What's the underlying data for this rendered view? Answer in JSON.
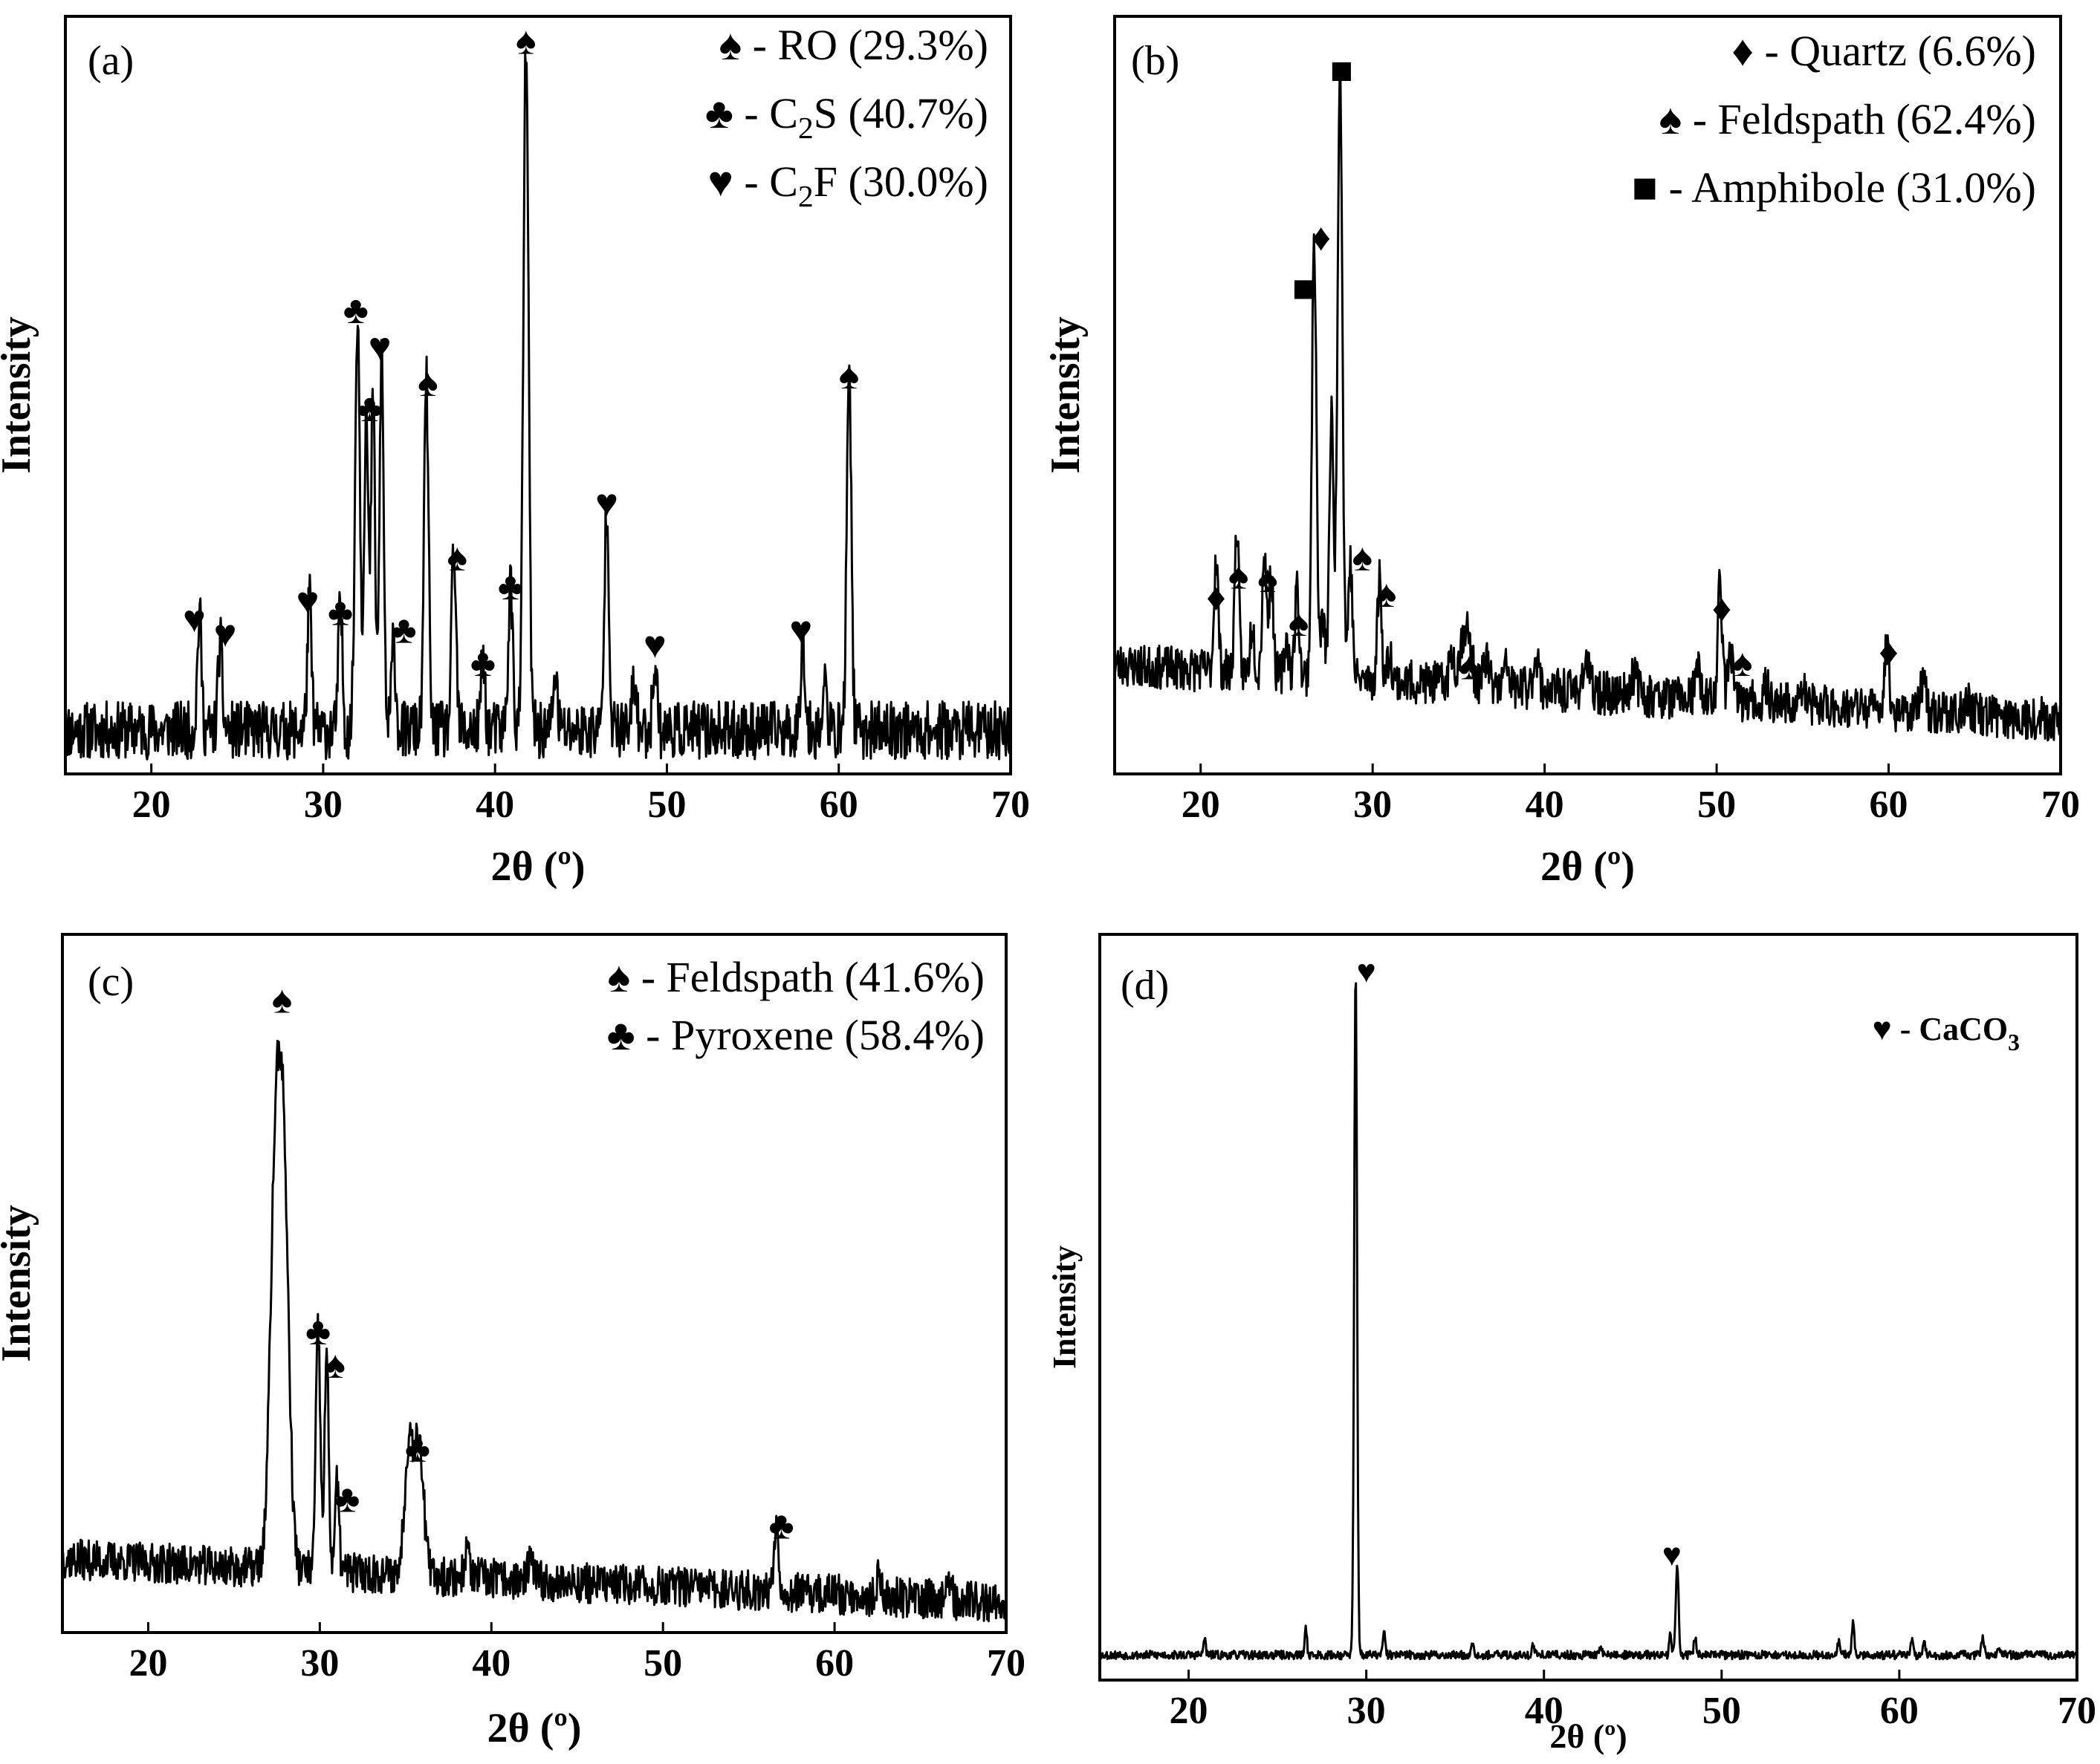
{
  "x_axis_label": "2θ (º)",
  "y_axis_label": "Intensity",
  "symbols": {
    "spade": "♠",
    "club": "♣",
    "heart": "♥",
    "diamond": "♦",
    "square": "■"
  },
  "chart_data": [
    {
      "panel": "(a)",
      "type": "line",
      "xlabel": "2θ (º)",
      "ylabel": "Intensity",
      "xlim": [
        15,
        70
      ],
      "ylim": [
        0,
        100
      ],
      "xticks": [
        20,
        30,
        40,
        50,
        60,
        70
      ],
      "baseline": 6,
      "seed": 11,
      "noise": 4,
      "peaks": [
        {
          "x": 22.8,
          "h": 16,
          "w": 0.12
        },
        {
          "x": 24.0,
          "h": 12,
          "w": 0.12
        },
        {
          "x": 29.2,
          "h": 18,
          "w": 0.12
        },
        {
          "x": 31.0,
          "h": 17,
          "w": 0.12
        },
        {
          "x": 32.0,
          "h": 58,
          "w": 0.14
        },
        {
          "x": 32.5,
          "h": 44,
          "w": 0.12
        },
        {
          "x": 32.9,
          "h": 46,
          "w": 0.12
        },
        {
          "x": 33.4,
          "h": 52,
          "w": 0.12
        },
        {
          "x": 34.1,
          "h": 12,
          "w": 0.12
        },
        {
          "x": 36.0,
          "h": 48,
          "w": 0.13
        },
        {
          "x": 37.6,
          "h": 24,
          "w": 0.13
        },
        {
          "x": 39.3,
          "h": 10,
          "w": 0.12
        },
        {
          "x": 40.9,
          "h": 20,
          "w": 0.13
        },
        {
          "x": 41.8,
          "h": 94,
          "w": 0.15
        },
        {
          "x": 43.5,
          "h": 8,
          "w": 0.12
        },
        {
          "x": 46.5,
          "h": 31,
          "w": 0.13
        },
        {
          "x": 48.1,
          "h": 7,
          "w": 0.12
        },
        {
          "x": 49.3,
          "h": 10,
          "w": 0.12
        },
        {
          "x": 57.9,
          "h": 13,
          "w": 0.12
        },
        {
          "x": 59.2,
          "h": 6,
          "w": 0.12
        },
        {
          "x": 60.6,
          "h": 51,
          "w": 0.13
        }
      ],
      "legend": [
        {
          "symbol": "♠",
          "text": "- RO (29.3%)"
        },
        {
          "symbol": "♣",
          "text": "- C",
          "sub": "2",
          "tail": "S (40.7%)"
        },
        {
          "symbol": "♥",
          "text": "- C",
          "sub": "2",
          "tail": "F (30.0%)"
        }
      ],
      "markers": [
        {
          "x": 22.5,
          "y": 19.5,
          "symbol": "♥"
        },
        {
          "x": 24.3,
          "y": 17.5,
          "symbol": "♥"
        },
        {
          "x": 29.1,
          "y": 22,
          "symbol": "♥"
        },
        {
          "x": 31.0,
          "y": 20.5,
          "symbol": "♣"
        },
        {
          "x": 31.9,
          "y": 62,
          "symbol": "♣"
        },
        {
          "x": 32.7,
          "y": 48.5,
          "symbol": "♣"
        },
        {
          "x": 33.3,
          "y": 57,
          "symbol": "♥"
        },
        {
          "x": 34.7,
          "y": 18,
          "symbol": "♣"
        },
        {
          "x": 36.1,
          "y": 52,
          "symbol": "♠"
        },
        {
          "x": 37.8,
          "y": 28,
          "symbol": "♠"
        },
        {
          "x": 39.3,
          "y": 13.5,
          "symbol": "♣"
        },
        {
          "x": 40.9,
          "y": 24,
          "symbol": "♣"
        },
        {
          "x": 41.8,
          "y": 99,
          "symbol": "♠"
        },
        {
          "x": 46.5,
          "y": 35.5,
          "symbol": "♥"
        },
        {
          "x": 49.3,
          "y": 16,
          "symbol": "♥"
        },
        {
          "x": 57.8,
          "y": 18,
          "symbol": "♥"
        },
        {
          "x": 60.6,
          "y": 53,
          "symbol": "♠"
        }
      ]
    },
    {
      "panel": "(b)",
      "type": "line",
      "xlabel": "2θ (º)",
      "ylabel": "Intensity",
      "xlim": [
        15,
        70
      ],
      "ylim": [
        0,
        100
      ],
      "xticks": [
        20,
        30,
        40,
        50,
        60,
        70
      ],
      "baseline": 6,
      "seed": 23,
      "noise": 3,
      "hump": {
        "start": 9,
        "end": 1.5
      },
      "peaks": [
        {
          "x": 20.9,
          "h": 16,
          "w": 0.12
        },
        {
          "x": 22.1,
          "h": 20,
          "w": 0.12
        },
        {
          "x": 23.0,
          "h": 7,
          "w": 0.12
        },
        {
          "x": 23.7,
          "h": 17,
          "w": 0.12
        },
        {
          "x": 24.1,
          "h": 14,
          "w": 0.12
        },
        {
          "x": 25.0,
          "h": 5,
          "w": 0.12
        },
        {
          "x": 25.6,
          "h": 12,
          "w": 0.12
        },
        {
          "x": 26.6,
          "h": 60,
          "w": 0.13
        },
        {
          "x": 27.1,
          "h": 8,
          "w": 0.12
        },
        {
          "x": 27.6,
          "h": 36,
          "w": 0.12
        },
        {
          "x": 28.1,
          "h": 85,
          "w": 0.14
        },
        {
          "x": 28.7,
          "h": 16,
          "w": 0.12
        },
        {
          "x": 30.4,
          "h": 14,
          "w": 0.12
        },
        {
          "x": 31.0,
          "h": 4,
          "w": 0.12
        },
        {
          "x": 34.6,
          "h": 4,
          "w": 0.15
        },
        {
          "x": 35.4,
          "h": 8,
          "w": 0.3
        },
        {
          "x": 36.6,
          "h": 4,
          "w": 0.15
        },
        {
          "x": 37.8,
          "h": 3,
          "w": 0.15
        },
        {
          "x": 39.5,
          "h": 5,
          "w": 0.15
        },
        {
          "x": 42.4,
          "h": 4,
          "w": 0.2
        },
        {
          "x": 45.2,
          "h": 3,
          "w": 0.2
        },
        {
          "x": 48.9,
          "h": 4,
          "w": 0.15
        },
        {
          "x": 50.2,
          "h": 16,
          "w": 0.13
        },
        {
          "x": 50.8,
          "h": 8,
          "w": 0.12
        },
        {
          "x": 52.9,
          "h": 2,
          "w": 0.15
        },
        {
          "x": 55.0,
          "h": 2,
          "w": 0.15
        },
        {
          "x": 59.9,
          "h": 9,
          "w": 0.13
        },
        {
          "x": 62.0,
          "h": 4,
          "w": 0.15
        },
        {
          "x": 64.6,
          "h": 2,
          "w": 0.15
        }
      ],
      "legend": [
        {
          "symbol": "♦",
          "text": "- Quartz (6.6%)"
        },
        {
          "symbol": "♠",
          "text": "- Feldspath (62.4%)"
        },
        {
          "symbol": "■",
          "text": "- Amphibole (31.0%)"
        }
      ],
      "markers": [
        {
          "x": 20.9,
          "y": 22.5,
          "symbol": "♦"
        },
        {
          "x": 22.2,
          "y": 25.5,
          "symbol": "♠"
        },
        {
          "x": 23.9,
          "y": 25,
          "symbol": "♠"
        },
        {
          "x": 25.7,
          "y": 19,
          "symbol": "♠"
        },
        {
          "x": 26.0,
          "y": 65,
          "symbol": "■"
        },
        {
          "x": 27.0,
          "y": 72,
          "symbol": "♦"
        },
        {
          "x": 28.2,
          "y": 95,
          "symbol": "■"
        },
        {
          "x": 29.4,
          "y": 28,
          "symbol": "♠"
        },
        {
          "x": 30.8,
          "y": 23,
          "symbol": "♠"
        },
        {
          "x": 35.6,
          "y": 13,
          "symbol": "♠"
        },
        {
          "x": 50.3,
          "y": 21,
          "symbol": "♦"
        },
        {
          "x": 51.5,
          "y": 13.5,
          "symbol": "♠"
        },
        {
          "x": 60.0,
          "y": 15,
          "symbol": "♦"
        }
      ]
    },
    {
      "panel": "(c)",
      "type": "line",
      "xlabel": "2θ (º)",
      "ylabel": "Intensity",
      "xlim": [
        15,
        70
      ],
      "ylim": [
        0,
        100
      ],
      "xticks": [
        20,
        30,
        40,
        50,
        60,
        70
      ],
      "baseline": 4,
      "seed": 37,
      "noise": 3,
      "hump": {
        "start": 7,
        "end": 0.5
      },
      "peaks": [
        {
          "x": 27.4,
          "h": 55,
          "w": 0.3
        },
        {
          "x": 27.9,
          "h": 55,
          "w": 0.3
        },
        {
          "x": 29.9,
          "h": 36,
          "w": 0.13
        },
        {
          "x": 30.4,
          "h": 32,
          "w": 0.12
        },
        {
          "x": 31.0,
          "h": 13,
          "w": 0.12
        },
        {
          "x": 35.2,
          "h": 20,
          "w": 0.25
        },
        {
          "x": 35.8,
          "h": 20,
          "w": 0.25
        },
        {
          "x": 38.6,
          "h": 4,
          "w": 0.15
        },
        {
          "x": 42.3,
          "h": 3,
          "w": 0.15
        },
        {
          "x": 56.6,
          "h": 11,
          "w": 0.13
        },
        {
          "x": 62.6,
          "h": 3,
          "w": 0.12
        },
        {
          "x": 66.7,
          "h": 3,
          "w": 0.12
        }
      ],
      "legend": [
        {
          "symbol": "♠",
          "text": "- Feldspath (41.6%)"
        },
        {
          "symbol": "♣",
          "text": "- Pyroxene (58.4%)"
        }
      ],
      "markers": [
        {
          "x": 27.8,
          "y": 92.5,
          "symbol": "♠"
        },
        {
          "x": 29.9,
          "y": 43,
          "symbol": "♣"
        },
        {
          "x": 30.9,
          "y": 38,
          "symbol": "♠"
        },
        {
          "x": 31.6,
          "y": 18,
          "symbol": "♣"
        },
        {
          "x": 35.7,
          "y": 25.5,
          "symbol": "♣"
        },
        {
          "x": 56.9,
          "y": 14,
          "symbol": "♣"
        }
      ]
    },
    {
      "panel": "(d)",
      "type": "line",
      "xlabel": "2θ (º)",
      "ylabel": "Intensity",
      "xlim": [
        15,
        70
      ],
      "ylim": [
        0,
        100
      ],
      "xticks": [
        20,
        30,
        40,
        50,
        60,
        70
      ],
      "baseline": 3.5,
      "seed": 53,
      "noise": 0.6,
      "thin": true,
      "peaks": [
        {
          "x": 20.9,
          "h": 2.5,
          "w": 0.06
        },
        {
          "x": 26.6,
          "h": 4,
          "w": 0.06
        },
        {
          "x": 29.4,
          "h": 96,
          "w": 0.08
        },
        {
          "x": 31.0,
          "h": 3,
          "w": 0.07
        },
        {
          "x": 36.0,
          "h": 2,
          "w": 0.07
        },
        {
          "x": 39.4,
          "h": 1.5,
          "w": 0.07
        },
        {
          "x": 43.2,
          "h": 1.5,
          "w": 0.07
        },
        {
          "x": 47.1,
          "h": 3,
          "w": 0.06
        },
        {
          "x": 47.5,
          "h": 12.5,
          "w": 0.08
        },
        {
          "x": 48.5,
          "h": 2.5,
          "w": 0.07
        },
        {
          "x": 56.6,
          "h": 2,
          "w": 0.07
        },
        {
          "x": 57.4,
          "h": 4.5,
          "w": 0.07
        },
        {
          "x": 60.7,
          "h": 2,
          "w": 0.07
        },
        {
          "x": 61.4,
          "h": 1.5,
          "w": 0.07
        },
        {
          "x": 64.7,
          "h": 2.5,
          "w": 0.07
        },
        {
          "x": 65.6,
          "h": 1.5,
          "w": 0.07
        }
      ],
      "legend": [
        {
          "symbol": "♥",
          "text": "- CaCO",
          "sub": "3",
          "tail": ""
        }
      ],
      "markers": [
        {
          "x": 30.0,
          "y": 97.5,
          "symbol": "♥"
        },
        {
          "x": 47.2,
          "y": 16,
          "symbol": "♥"
        }
      ]
    }
  ]
}
